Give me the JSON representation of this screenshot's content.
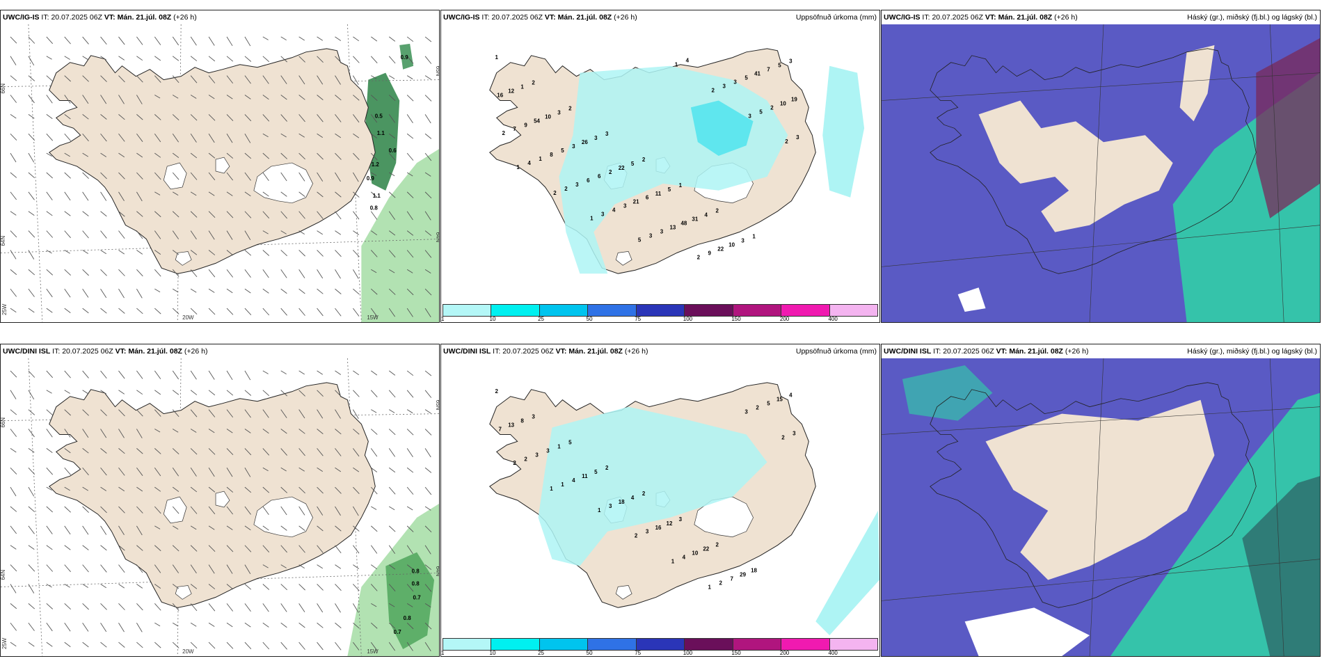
{
  "colors": {
    "land": "#efe2d2",
    "ice": "#ffffff",
    "precip_light": "#aef4f4",
    "precip_mid": "#5fe6ee",
    "cloud_low": "#5a5ac4",
    "cloud_mid": "#2fd6a6",
    "cloud_high": "#7a2a5a",
    "wind_green": "#7fce7f"
  },
  "panels": [
    {
      "id": "wind-igis",
      "model": "UWC/IG-IS",
      "it_label": "IT:",
      "it_value": "20.07.2025 06Z",
      "vt_label": "VT:",
      "vt_value": "Mán. 21.júl. 08Z",
      "lead": "(+26 h)",
      "right_title": "",
      "axis_labels": [
        "66N",
        "64N",
        "25W",
        "20W",
        "15W",
        "65N",
        "64N"
      ],
      "values": [
        "0.9",
        "0.5",
        "1.1",
        "0.6",
        "1.2",
        "0.9",
        "0.8",
        "1.1"
      ]
    },
    {
      "id": "precip-igis",
      "model": "UWC/IG-IS",
      "it_label": "IT:",
      "it_value": "20.07.2025 06Z",
      "vt_label": "VT:",
      "vt_value": "Mán. 21.júl. 08Z",
      "lead": "(+26 h)",
      "right_title": "Uppsöfnuð úrkoma (mm)",
      "values": [
        "1",
        "2",
        "2",
        "3",
        "2",
        "1",
        "2",
        "1",
        "3",
        "1",
        "3",
        "3",
        "5",
        "5",
        "4",
        "3",
        "5",
        "12",
        "10",
        "26",
        "22",
        "11",
        "31",
        "10",
        "7",
        "16",
        "54",
        "3",
        "2",
        "6",
        "48",
        "22",
        "41",
        "19",
        "9",
        "5",
        "6",
        "21",
        "13",
        "9",
        "5",
        "10",
        "7",
        "8",
        "6",
        "3",
        "3",
        "2",
        "3",
        "2",
        "2",
        "1",
        "3",
        "4",
        "3",
        "4",
        "3",
        "5",
        "3",
        "4",
        "2",
        "3",
        "5",
        "1",
        "2",
        "3",
        "2",
        "1",
        "2",
        "1"
      ]
    },
    {
      "id": "cloud-igis",
      "model": "UWC/IG-IS",
      "it_label": "IT:",
      "it_value": "20.07.2025 06Z",
      "vt_label": "VT:",
      "vt_value": "Mán. 21.júl. 08Z",
      "lead": "(+26 h)",
      "right_title": "Háský (gr.), miðský (fj.bl.) og lágský (bl.)"
    },
    {
      "id": "wind-dini",
      "model": "UWC/DINI ISL",
      "it_label": "IT:",
      "it_value": "20.07.2025 06Z",
      "vt_label": "VT:",
      "vt_value": "Mán. 21.júl. 08Z",
      "lead": "(+26 h)",
      "right_title": "",
      "axis_labels": [
        "66N",
        "64N",
        "25W",
        "20W",
        "15W",
        "65N",
        "64N"
      ],
      "values": [
        "0.8",
        "0.8",
        "0.7",
        "0.8",
        "0.7"
      ]
    },
    {
      "id": "precip-dini",
      "model": "UWC/DINI ISL",
      "it_label": "IT:",
      "it_value": "20.07.2025 06Z",
      "vt_label": "VT:",
      "vt_value": "Mán. 21.júl. 08Z",
      "lead": "(+26 h)",
      "right_title": "Uppsöfnuð úrkoma (mm)",
      "values": [
        "2",
        "3",
        "5",
        "2",
        "2",
        "3",
        "2",
        "18",
        "4",
        "8",
        "1",
        "5",
        "4",
        "12",
        "22",
        "29",
        "15",
        "13",
        "3",
        "11",
        "18",
        "16",
        "10",
        "7",
        "5",
        "7",
        "3",
        "4",
        "3",
        "3",
        "4",
        "2",
        "2",
        "3",
        "2",
        "1",
        "1",
        "2",
        "1",
        "1",
        "3",
        "2",
        "2",
        "1"
      ]
    },
    {
      "id": "cloud-dini",
      "model": "UWC/DINI ISL",
      "it_label": "IT:",
      "it_value": "20.07.2025 06Z",
      "vt_label": "VT:",
      "vt_value": "Mán. 21.júl. 08Z",
      "lead": "(+26 h)",
      "right_title": "Háský (gr.), miðský (fj.bl.) og lágský (bl.)"
    }
  ],
  "legend": {
    "ticks": [
      "1",
      "10",
      "25",
      "50",
      "75",
      "100",
      "150",
      "200",
      "400"
    ],
    "colors": [
      "#b4f7f7",
      "#00f0f0",
      "#00c4ee",
      "#2f72e6",
      "#2a35b8",
      "#6a0f5a",
      "#b0157e",
      "#f01ab0",
      "#f4b4f0"
    ]
  }
}
